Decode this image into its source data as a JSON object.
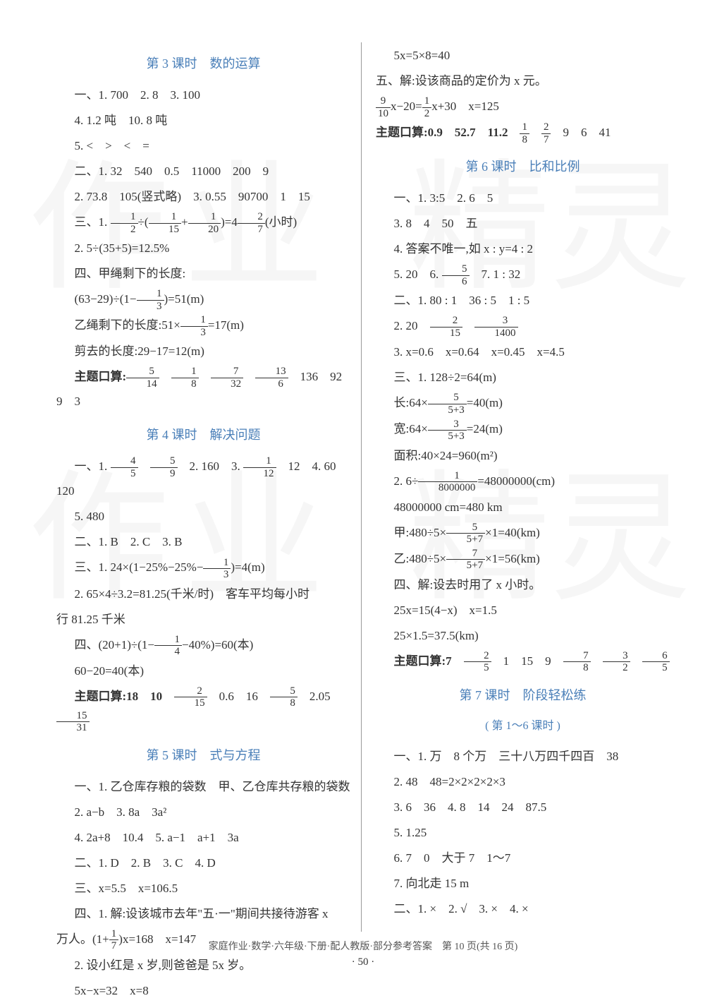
{
  "watermarks": [
    "作",
    "业",
    "精",
    "灵",
    "作",
    "业",
    "精",
    "灵"
  ],
  "left": {
    "section3": {
      "title": "第 3 课时　数的运算",
      "lines": [
        "一、1. 700　2. 8　3. 100",
        "4. 1.2 吨　10. 8 吨",
        "5. <　>　<　=",
        "二、1. 32　540　0.5　11000　200　9",
        "2. 73.8　105(竖式略)　3. 0.55　90700　1　15"
      ],
      "formula1_pre": "三、1. ",
      "formula1_mid": "÷",
      "formula1_paren": "=4",
      "formula1_end": "(小时)",
      "line2": "2. 5÷(35+5)=12.5%",
      "line3": "四、甲绳剩下的长度:",
      "formula2_pre": "(63−29)÷",
      "formula2_end": "=51(m)",
      "line4_pre": "乙绳剩下的长度:51×",
      "line4_end": "=17(m)",
      "line5": "剪去的长度:29−17=12(m)",
      "theme_pre": "主题口算:",
      "theme_end": "　136　92　9　3"
    },
    "section4": {
      "title": "第 4 课时　解决问题",
      "line1_pre": "一、1. ",
      "line1_mid": "　2. 160　3. ",
      "line1_end": "　12　4. 60　120",
      "line2": "5. 480",
      "line3": "二、1. B　2. C　3. B",
      "line4_pre": "三、1. 24×",
      "line4_mid": "1−25%−25%−",
      "line4_end": "=4(m)",
      "line5": "2. 65×4÷3.2=81.25(千米/时)　客车平均每小时",
      "line5b": "行 81.25 千米",
      "line6_pre": "四、(20+1)÷",
      "line6_mid": "1−",
      "line6_end": "−40%",
      "line6_after": "=60(本)",
      "line7": "60−20=40(本)",
      "theme_pre": "主题口算:18　10　",
      "theme_mid": "　0.6　16　",
      "theme_end": "　2.05　"
    },
    "section5": {
      "title": "第 5 课时　式与方程",
      "lines": [
        "一、1. 乙仓库存粮的袋数　甲、乙仓库共存粮的袋数",
        "2. a−b　3. 8a　3a²",
        "4. 2a+8　10.4　5. a−1　a+1　3a",
        "二、1. D　2. B　3. C　4. D",
        "三、x=5.5　x=106.5",
        "四、1. 解:设该城市去年\"五·一\"期间共接待游客 x"
      ],
      "line_wanren_pre": "万人。",
      "line_wanren_mid": "1+",
      "line_wanren_end": "x=168　x=147",
      "line_last1": "2. 设小红是 x 岁,则爸爸是 5x 岁。",
      "line_last2": "5x−x=32　x=8"
    }
  },
  "right": {
    "top_lines": [
      "5x=5×8=40",
      "五、解:设该商品的定价为 x 元。"
    ],
    "formula_pre": "",
    "formula_mid": "x−20=",
    "formula_end": "x+30　x=125",
    "theme1_pre": "主题口算:0.9　52.7　11.2　",
    "theme1_end": "　9　6　41",
    "section6": {
      "title": "第 6 课时　比和比例",
      "lines": [
        "一、1. 3:5　2. 6　5",
        "3. 8　4　50　五",
        "4. 答案不唯一,如 x : y=4 : 2"
      ],
      "line5_pre": "5. 20　6. ",
      "line5_end": "　7. 1 : 32",
      "line_er": "二、1. 80 : 1　36 : 5　1 : 5",
      "line_2_pre": "2. 20　",
      "line_3": "3. x=0.6　x=0.64　x=0.45　x=4.5",
      "line_san": "三、1. 128÷2=64(m)",
      "line_chang_pre": "长:64×",
      "line_chang_end": "=40(m)",
      "line_kuan_pre": "宽:64×",
      "line_kuan_end": "=24(m)",
      "line_area": "面积:40×24=960(m²)",
      "line_2div_pre": "2. 6÷",
      "line_2div_end": "=48000000(cm)",
      "line_48": "48000000 cm=480 km",
      "line_jia_pre": "甲:480÷5×",
      "line_jia_end": "×1=40(km)",
      "line_yi_pre": "乙:480÷5×",
      "line_yi_end": "×1=56(km)",
      "line_si": "四、解:设去时用了 x 小时。",
      "line_25x": "25x=15(4−x)　x=1.5",
      "line_25": "25×1.5=37.5(km)",
      "theme_pre": "主题口算:7　",
      "theme_mid": "　1　15　9　"
    },
    "section7": {
      "title": "第 7 课时　阶段轻松练",
      "subtitle": "( 第 1～6 课时 )",
      "lines": [
        "一、1. 万　8 个万　三十八万四千四百　38",
        "2. 48　48=2×2×2×2×3",
        "3. 6　36　4. 8　14　24　87.5",
        "5. 1.25",
        "6. 7　0　大于 7　1～7",
        "7. 向北走 15 m",
        "二、1. ×　2. √　3. ×　4. ×"
      ]
    }
  },
  "footer": "家庭作业·数学·六年级·下册·配人教版·部分参考答案　第 10 页(共 16 页)",
  "page_num": "· 50 ·"
}
